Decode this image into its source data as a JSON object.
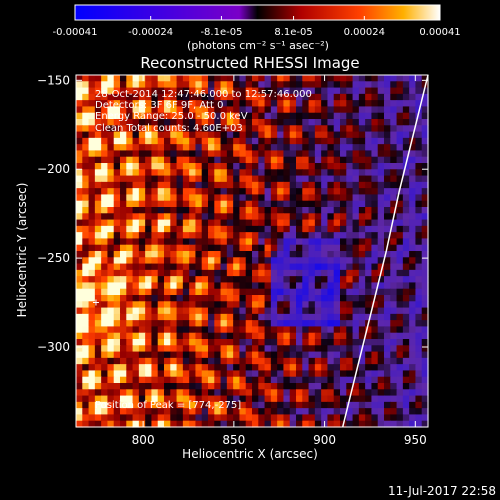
{
  "chart_data": {
    "type": "heatmap",
    "title": "Reconstructed RHESSI Image",
    "xlabel": "Heliocentric X (arcsec)",
    "ylabel": "Heliocentric Y (arcsec)",
    "xlim": [
      763,
      957
    ],
    "ylim": [
      -345,
      -147
    ],
    "x_ticks": [
      800,
      850,
      900,
      950
    ],
    "y_ticks": [
      -150,
      -200,
      -250,
      -300
    ],
    "colorbar": {
      "min": -0.00041,
      "max": 0.00041,
      "tick_values": [
        -0.00041,
        -0.00024,
        -8.1e-05,
        8.1e-05,
        0.00024,
        0.00041
      ],
      "tick_labels": [
        "-0.00041",
        "-0.00024",
        "-8.1e-05",
        "8.1e-05",
        "0.00024",
        "0.00041"
      ],
      "units_label": "(photons cm⁻² s⁻¹ asec⁻²)"
    },
    "annotations": [
      "28-Oct-2014 12:47:46.000 to 12:57:46.000",
      "Detectors: 3F 6F 9F, Att 0",
      "Energy Range: 25.0 - 50.0 keV",
      "Clean     Total counts: 4.60E+03"
    ],
    "peak_label": "Position of Peak = [774,-275]",
    "peak_position": [
      774,
      -275
    ],
    "limb_x": [
      957,
      949,
      941,
      934,
      926,
      918,
      910
    ],
    "limb_y": [
      -147,
      -180,
      -213,
      -246,
      -279,
      -312,
      -345
    ]
  },
  "footer": {
    "timestamp": "11-Jul-2017 22:58"
  },
  "colors": {
    "background": "#000000",
    "foreground": "#ffffff"
  }
}
